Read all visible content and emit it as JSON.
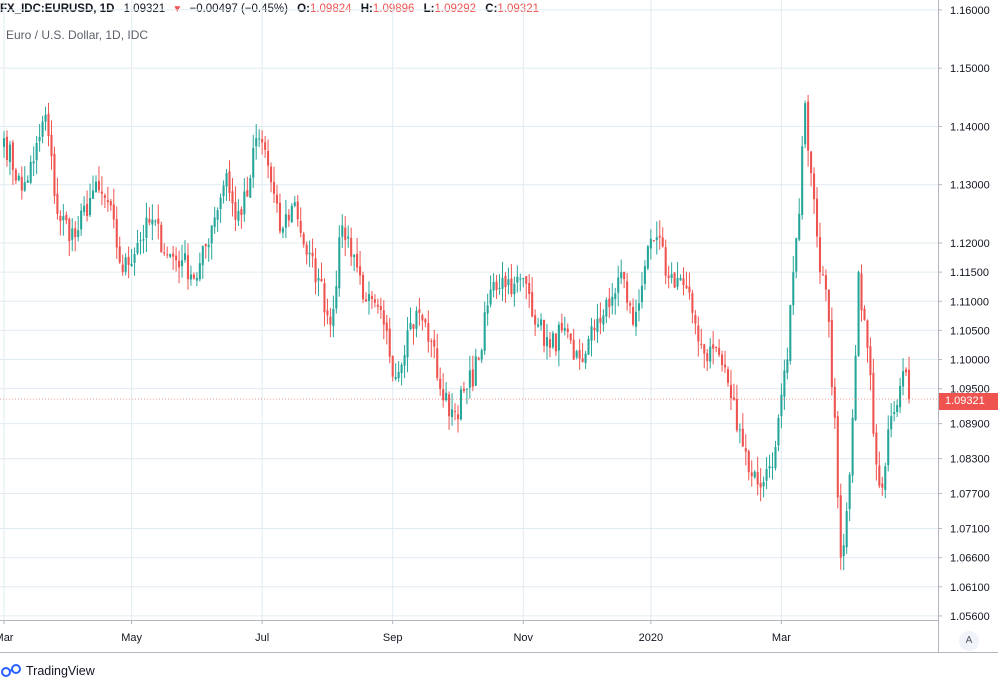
{
  "header": {
    "symbol": "FX_IDC:EURUSD, 1D",
    "last": "1.09321",
    "arrow": "▼",
    "change": "−0.00497 (−0.45%)",
    "o_label": "O:",
    "o_value": "1.09824",
    "h_label": "H:",
    "h_value": "1.09896",
    "l_label": "L:",
    "l_value": "1.09292",
    "c_label": "C:",
    "c_value": "1.09321"
  },
  "subtitle": "Euro / U.S. Dollar, 1D, IDC",
  "price_badge": "1.09321",
  "auto_button": "A",
  "footer": {
    "brand": "TradingView"
  },
  "colors": {
    "up": "#26a69a",
    "down": "#ef5350",
    "grid": "#e1ecf2",
    "axis_text": "#131722"
  },
  "chart_data": {
    "type": "candlestick",
    "ylim": [
      1.0553,
      1.1617
    ],
    "y_ticks": [
      "1.16000",
      "1.15000",
      "1.14000",
      "1.13000",
      "1.12000",
      "1.11500",
      "1.11000",
      "1.10500",
      "1.10000",
      "1.09500",
      "1.08900",
      "1.08300",
      "1.07700",
      "1.07100",
      "1.06600",
      "1.06100",
      "1.05600"
    ],
    "x_ticks": [
      "Mar",
      "May",
      "Jul",
      "Sep",
      "Nov",
      "2020",
      "Mar"
    ],
    "x_tick_index": [
      0,
      43,
      87,
      131,
      175,
      218,
      262
    ],
    "grid": true,
    "series": [
      {
        "name": "EURUSD",
        "path": [
          [
            0,
            1.138
          ],
          [
            6,
            1.129
          ],
          [
            10,
            1.134
          ],
          [
            14,
            1.142
          ],
          [
            18,
            1.125
          ],
          [
            24,
            1.121
          ],
          [
            30,
            1.129
          ],
          [
            35,
            1.127
          ],
          [
            40,
            1.115
          ],
          [
            45,
            1.12
          ],
          [
            50,
            1.124
          ],
          [
            55,
            1.118
          ],
          [
            60,
            1.117
          ],
          [
            65,
            1.114
          ],
          [
            70,
            1.123
          ],
          [
            75,
            1.132
          ],
          [
            78,
            1.124
          ],
          [
            82,
            1.128
          ],
          [
            85,
            1.138
          ],
          [
            88,
            1.136
          ],
          [
            93,
            1.122
          ],
          [
            98,
            1.127
          ],
          [
            102,
            1.118
          ],
          [
            106,
            1.114
          ],
          [
            110,
            1.106
          ],
          [
            114,
            1.123
          ],
          [
            118,
            1.118
          ],
          [
            122,
            1.11
          ],
          [
            128,
            1.106
          ],
          [
            132,
            1.097
          ],
          [
            136,
            1.105
          ],
          [
            140,
            1.108
          ],
          [
            144,
            1.103
          ],
          [
            148,
            1.093
          ],
          [
            152,
            1.091
          ],
          [
            156,
            1.095
          ],
          [
            160,
            1.1
          ],
          [
            164,
            1.112
          ],
          [
            168,
            1.114
          ],
          [
            172,
            1.113
          ],
          [
            176,
            1.113
          ],
          [
            180,
            1.106
          ],
          [
            184,
            1.102
          ],
          [
            188,
            1.105
          ],
          [
            192,
            1.1
          ],
          [
            196,
            1.101
          ],
          [
            200,
            1.107
          ],
          [
            204,
            1.109
          ],
          [
            208,
            1.115
          ],
          [
            212,
            1.106
          ],
          [
            216,
            1.116
          ],
          [
            220,
            1.121
          ],
          [
            224,
            1.114
          ],
          [
            228,
            1.114
          ],
          [
            232,
            1.108
          ],
          [
            236,
            1.101
          ],
          [
            240,
            1.102
          ],
          [
            244,
            1.096
          ],
          [
            248,
            1.088
          ],
          [
            252,
            1.08
          ],
          [
            256,
            1.079
          ],
          [
            260,
            1.085
          ],
          [
            264,
            1.1
          ],
          [
            266,
            1.115
          ],
          [
            268,
            1.125
          ],
          [
            270,
            1.144
          ],
          [
            272,
            1.132
          ],
          [
            275,
            1.115
          ],
          [
            277,
            1.112
          ],
          [
            280,
            1.09
          ],
          [
            282,
            1.066
          ],
          [
            284,
            1.074
          ],
          [
            286,
            1.09
          ],
          [
            288,
            1.115
          ],
          [
            291,
            1.102
          ],
          [
            294,
            1.082
          ],
          [
            296,
            1.078
          ],
          [
            298,
            1.088
          ],
          [
            300,
            1.091
          ],
          [
            303,
            1.098
          ],
          [
            305,
            1.0932
          ]
        ]
      }
    ],
    "last_index": 305,
    "first_open": 1.1365,
    "last_open": 1.09824
  }
}
